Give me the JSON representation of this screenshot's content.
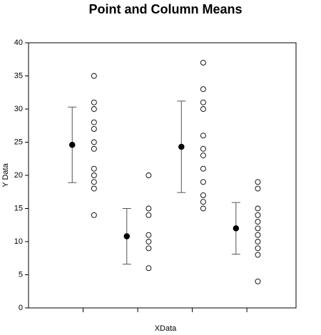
{
  "chart_data": {
    "type": "scatter",
    "title": "Point and Column Means",
    "xlabel": "XData",
    "ylabel": "Y Data",
    "xlim": [
      0,
      4.9
    ],
    "xticks": [
      1,
      2,
      3,
      4
    ],
    "ylim": [
      0,
      40
    ],
    "yticks": [
      0,
      5,
      10,
      15,
      20,
      25,
      30,
      35,
      40
    ],
    "series": [
      {
        "marker": "filled",
        "color": "#000000",
        "x": [
          0.8,
          1.8,
          2.8,
          3.8
        ],
        "values": [
          24.6,
          10.8,
          24.3,
          12.0
        ],
        "errors": [
          5.7,
          4.2,
          6.9,
          3.9
        ]
      },
      {
        "marker": "open",
        "color": "#000000",
        "x": [
          1.2,
          1.2,
          1.2,
          1.2,
          1.2,
          1.2,
          1.2,
          1.2,
          1.2,
          1.2,
          1.2,
          1.2
        ],
        "values": [
          35,
          31,
          30,
          28,
          27,
          25,
          24,
          21,
          20,
          19,
          18,
          14
        ]
      },
      {
        "marker": "open",
        "color": "#000000",
        "x": [
          2.2,
          2.2,
          2.2,
          2.2,
          2.2,
          2.2,
          2.2
        ],
        "values": [
          20,
          15,
          14,
          11,
          10,
          9,
          6
        ]
      },
      {
        "marker": "open",
        "color": "#000000",
        "x": [
          3.2,
          3.2,
          3.2,
          3.2,
          3.2,
          3.2,
          3.2,
          3.2,
          3.2,
          3.2,
          3.2,
          3.2
        ],
        "values": [
          37,
          33,
          31,
          30,
          26,
          24,
          23,
          21,
          19,
          17,
          16,
          15
        ]
      },
      {
        "marker": "open",
        "color": "#000000",
        "x": [
          4.2,
          4.2,
          4.2,
          4.2,
          4.2,
          4.2,
          4.2,
          4.2,
          4.2,
          4.2,
          4.2
        ],
        "values": [
          19,
          18,
          15,
          14,
          13,
          12,
          11,
          10,
          9,
          8,
          4
        ]
      }
    ]
  }
}
